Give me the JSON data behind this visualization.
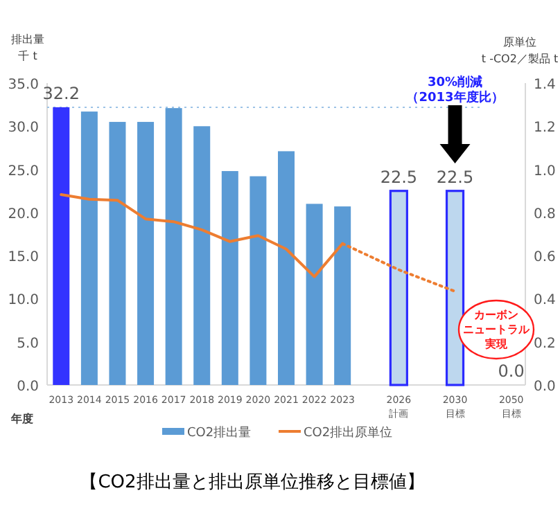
{
  "chart_data": {
    "type": "bar",
    "title": "【CO2排出量と排出原単位推移と目標値】",
    "xlabel": "年度",
    "ylabel": "排出量千 t",
    "y2label": "原単位\nt -CO2／製品 t",
    "categories": [
      "2013",
      "2014",
      "2015",
      "2016",
      "2017",
      "2018",
      "2019",
      "2020",
      "2021",
      "2022",
      "2023",
      null,
      "2026\n計画",
      null,
      "2030\n目標",
      null,
      "2050\n目標"
    ],
    "series": [
      {
        "name": "CO2排出量",
        "color": "#5b9bd5",
        "colors": [
          "#3333ff",
          "#5b9bd5",
          "#5b9bd5",
          "#5b9bd5",
          "#5b9bd5",
          "#5b9bd5",
          "#5b9bd5",
          "#5b9bd5",
          "#5b9bd5",
          "#5b9bd5",
          "#5b9bd5",
          null,
          "#bdd7ee",
          null,
          "#bdd7ee",
          null,
          "#bdd7ee"
        ],
        "values": [
          32.2,
          31.7,
          30.5,
          30.5,
          32.1,
          30.0,
          24.8,
          24.2,
          27.1,
          21.0,
          20.7,
          null,
          22.5,
          null,
          22.5,
          null,
          0.0
        ],
        "value_labels": [
          "32.2",
          null,
          null,
          null,
          null,
          null,
          null,
          null,
          null,
          null,
          null,
          null,
          "22.5",
          null,
          "22.5",
          null,
          "0.0"
        ]
      },
      {
        "name": "CO2排出原単位",
        "type": "line",
        "axis": "y2",
        "color": "#ed7d31",
        "values": [
          0.883,
          0.861,
          0.857,
          0.77,
          0.757,
          0.72,
          0.665,
          0.693,
          0.63,
          0.502,
          0.656,
          null,
          null,
          null,
          null,
          null,
          null
        ]
      },
      {
        "type": "line",
        "axis": "y2",
        "color": "#ed7d31",
        "line_style": "dotted",
        "values": [
          null,
          null,
          null,
          null,
          null,
          null,
          null,
          null,
          null,
          null,
          0.656,
          null,
          0.534,
          null,
          0.434,
          null,
          null
        ]
      }
    ],
    "ylim": [
      0,
      35
    ],
    "yticks": [
      {
        "value": 0,
        "label": "0.0"
      },
      {
        "value": 5,
        "label": "5.0"
      },
      {
        "value": 10,
        "label": "10.0"
      },
      {
        "value": 15,
        "label": "15.0"
      },
      {
        "value": 20,
        "label": "20.0"
      },
      {
        "value": 25,
        "label": "25.0"
      },
      {
        "value": 30,
        "label": "30.0"
      },
      {
        "value": 35,
        "label": "35.0"
      }
    ],
    "y2lim": [
      0,
      1.4
    ],
    "y2ticks": [
      {
        "value": 0,
        "label": "0.0"
      },
      {
        "value": 0.2,
        "label": "0.2"
      },
      {
        "value": 0.4,
        "label": "0.4"
      },
      {
        "value": 0.6,
        "label": "0.6"
      },
      {
        "value": 0.8,
        "label": "0.8"
      },
      {
        "value": 1.0,
        "label": "1.0"
      },
      {
        "value": 1.2,
        "label": "1.2"
      },
      {
        "value": 1.4,
        "label": "1.4"
      }
    ],
    "ref_lines": [
      {
        "axis": "y",
        "value": 32.2,
        "color": "#9dc3e6",
        "line_style": "dotted"
      }
    ],
    "annotations": [
      "30%削減",
      "（2013年度比）",
      "カーボン",
      "ニュートラル",
      "実現"
    ],
    "legend": "bottom",
    "grid": false
  }
}
